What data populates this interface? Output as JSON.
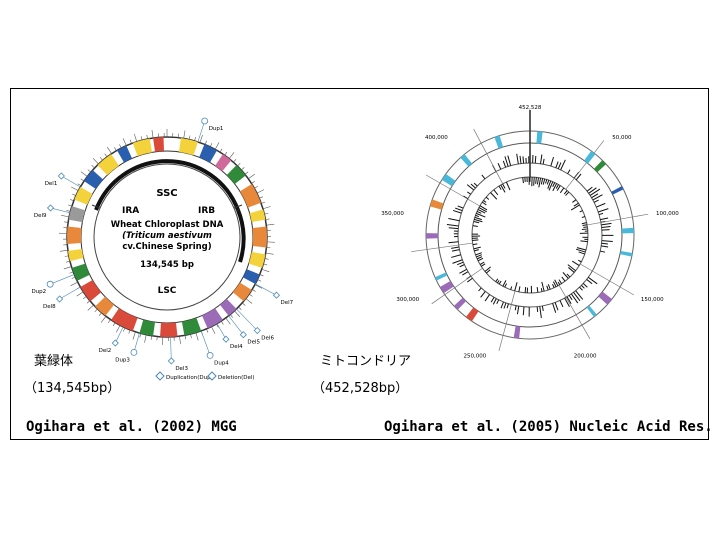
{
  "chloroplast": {
    "title_line1": "Wheat Chloroplast DNA",
    "title_line2": "(Triticum aestivum",
    "title_line3": "cv.Chinese Spring)",
    "size": "134,545 bp",
    "region_ssc": "SSC",
    "region_lsc": "LSC",
    "region_ira": "IRA",
    "region_irb": "IRB",
    "label_ja": "葉緑体",
    "size_paren": "（134,545bp）",
    "legend_dup": "Duplication(Dup)",
    "legend_del": "Deletion(Del)",
    "dup_labels": [
      "Dup1",
      "Dup2",
      "Dup3",
      "Dup4"
    ],
    "del_labels": [
      "Del1",
      "Del2",
      "Del3",
      "Del4",
      "Del5",
      "Del6",
      "Del7",
      "Del8",
      "Del9"
    ],
    "citation": "Ogihara et al. (2002) MGG"
  },
  "mitochondria": {
    "label_ja": "ミトコンドリア",
    "size_paren": "（452,528bp）",
    "ticks": [
      "452,528",
      "50,000",
      "100,000",
      "150,000",
      "200,000",
      "250,000",
      "300,000",
      "350,000",
      "400,000"
    ],
    "citation": "Ogihara et al. (2005) Nucleic Acid Res."
  },
  "colors": {
    "yellow": "#f4d23c",
    "blue": "#2a5fb0",
    "red": "#d94a3a",
    "green": "#2f8a3a",
    "orange": "#e8883a",
    "purple": "#9b6bb8",
    "pink": "#d06a9a",
    "cyan": "#4ab8d8",
    "gray": "#9a9a9a"
  }
}
